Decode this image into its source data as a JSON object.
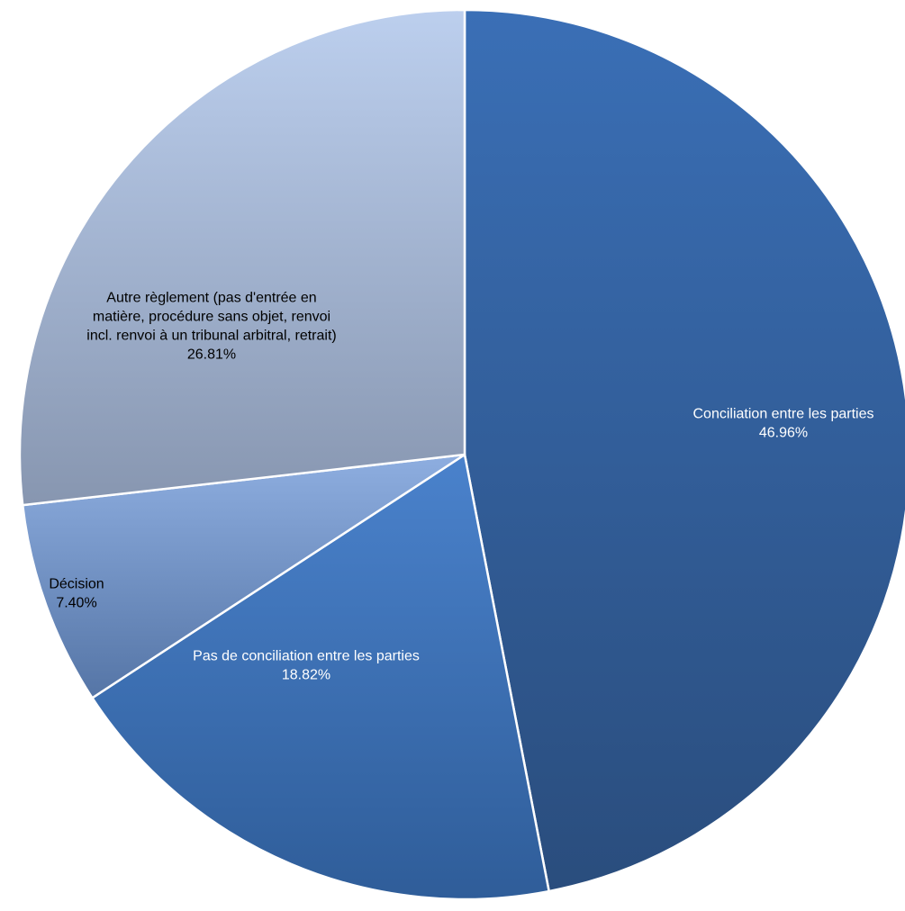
{
  "chart_data": {
    "type": "pie",
    "title": "",
    "start_angle_deg": 0,
    "direction": "clockwise",
    "slices": [
      {
        "label_lines": [
          "Conciliation entre les parties"
        ],
        "value": 46.96,
        "value_text": "46.96%",
        "color_top": "#3a6fb6",
        "color_bottom": "#2a4d7d",
        "label_light": true
      },
      {
        "label_lines": [
          "Pas de conciliation entre les parties"
        ],
        "value": 18.82,
        "value_text": "18.82%",
        "color_top": "#4a82cc",
        "color_bottom": "#2f5d99",
        "label_light": true
      },
      {
        "label_lines": [
          "Décision"
        ],
        "value": 7.4,
        "value_text": "7.40%",
        "color_top": "#8eaee0",
        "color_bottom": "#5575a6",
        "label_light": false
      },
      {
        "label_lines": [
          "Autre règlement (pas d'entrée en",
          "matière, procédure sans objet, renvoi",
          "incl. renvoi à un tribunal arbitral, retrait)"
        ],
        "value": 26.81,
        "value_text": "26.81%",
        "color_top": "#bccfee",
        "color_bottom": "#8796b0",
        "label_light": false
      }
    ]
  }
}
